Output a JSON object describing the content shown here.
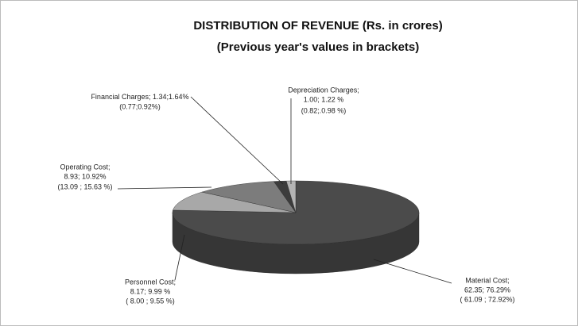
{
  "chart_data": {
    "type": "pie",
    "three_d": true,
    "title": "DISTRIBUTION OF REVENUE (Rs. in crores)",
    "subtitle": "(Previous year's values in brackets)",
    "categories": [
      "Material Cost;",
      "Personnel Cost;",
      "Operating Cost;",
      "Financial Charges;",
      "Depreciation Charges;"
    ],
    "values": [
      62.35,
      8.17,
      8.93,
      1.34,
      1.0
    ],
    "value_labels": [
      "62.35; 76.29%",
      "8.17; 9.99 %",
      "8.93; 10.92%",
      "1.34;1.64%",
      "1.00; 1.22 %"
    ],
    "previous_labels": [
      "( 61.09 ; 72.92%)",
      "( 8.00 ; 9.55 %)",
      "(13.09 ; 15.63 %)",
      "(0.77;0.92%)",
      "(0.82;.0.98 %)"
    ],
    "colors": [
      "#4b4b4b",
      "#a8a8a8",
      "#7c7c7c",
      "#3c3c3c",
      "#b4b4b4"
    ]
  }
}
